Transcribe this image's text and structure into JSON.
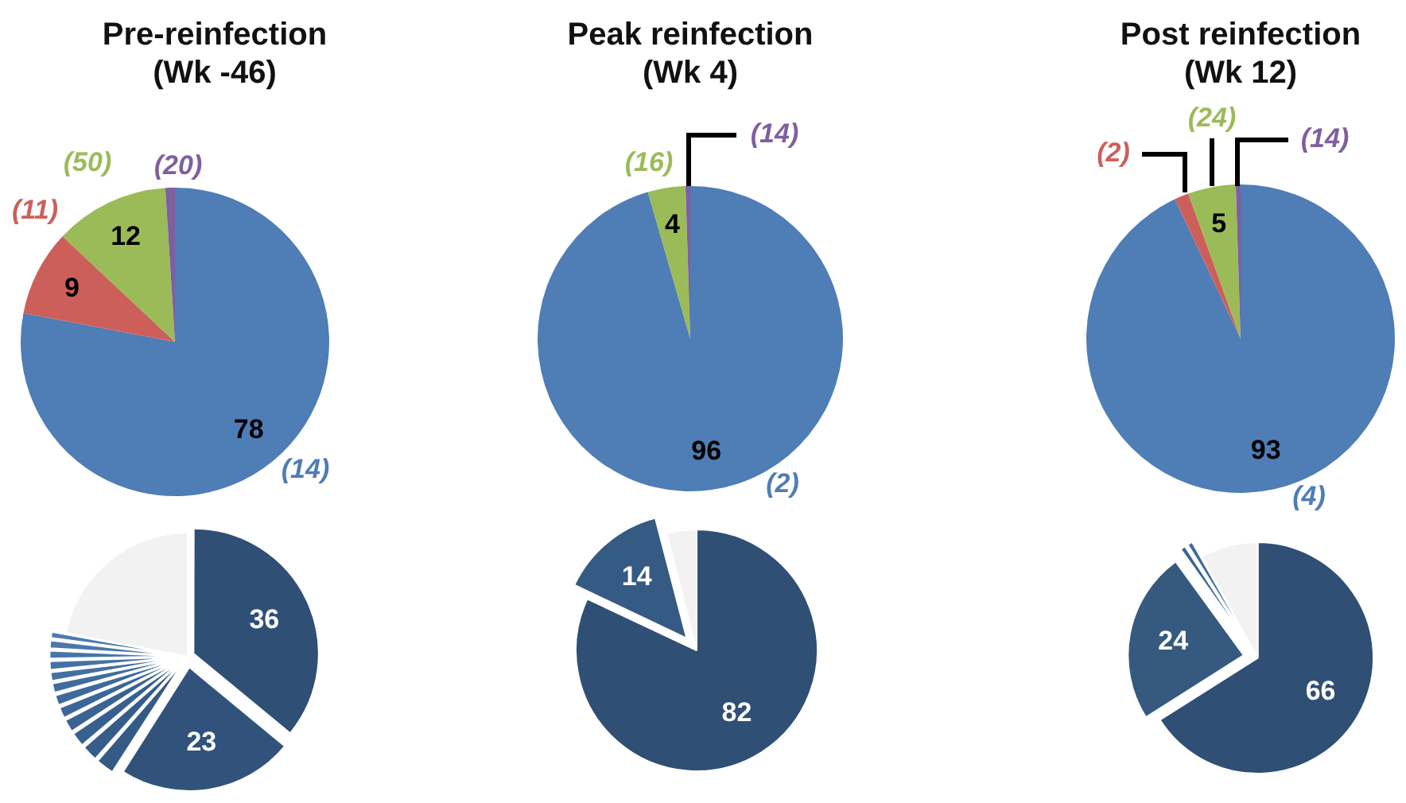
{
  "chart_data": [
    {
      "type": "pie",
      "title": "Pre-reinfection (Wk -46)",
      "categories": [
        null,
        null,
        null,
        null
      ],
      "values": [
        78,
        9,
        12,
        1
      ],
      "colors": [
        "#4f7db5",
        "#cd5f5a",
        "#9bbb59",
        "#7f5fa0"
      ],
      "value_labels": [
        "78",
        "9",
        "12",
        null
      ],
      "annotations": [
        "(14)",
        "(11)",
        "(50)",
        "(20)"
      ]
    },
    {
      "type": "pie",
      "title": "Peak reinfection (Wk 4)",
      "categories": [
        null,
        null,
        null
      ],
      "values": [
        96,
        4,
        0.5
      ],
      "colors": [
        "#4f7db5",
        "#9bbb59",
        "#7f5fa0"
      ],
      "value_labels": [
        "96",
        "4",
        null
      ],
      "annotations": [
        "(2)",
        "(16)",
        "(14)"
      ]
    },
    {
      "type": "pie",
      "title": "Post reinfection (Wk 12)",
      "categories": [
        null,
        null,
        null,
        null
      ],
      "values": [
        93,
        1.5,
        5,
        0.5
      ],
      "colors": [
        "#4f7db5",
        "#cd5f5a",
        "#9bbb59",
        "#7f5fa0"
      ],
      "value_labels": [
        "93",
        null,
        "5",
        null
      ],
      "annotations": [
        "(4)",
        "(2)",
        "(24)",
        "(14)"
      ]
    },
    {
      "type": "pie",
      "categories": [
        null,
        null,
        null,
        null,
        null,
        null,
        null,
        null,
        null,
        null,
        null,
        null,
        null,
        null,
        null
      ],
      "values": [
        36,
        23,
        2.5,
        2.2,
        2,
        1.8,
        1.6,
        1.5,
        1.4,
        1.3,
        1.3,
        1.2,
        1.2,
        1.0,
        22
      ],
      "colors": [
        "#2f4f75",
        "#31537b",
        "#345a86",
        "#365d8a",
        "#38608e",
        "#3a6392",
        "#3c6696",
        "#3e699a",
        "#406c9e",
        "#436fa2",
        "#4572a6",
        "#4775aa",
        "#4978ae",
        "#4b7bb2",
        "#f2f2f2"
      ],
      "value_labels": [
        "36",
        "23",
        null,
        null,
        null,
        null,
        null,
        null,
        null,
        null,
        null,
        null,
        null,
        null,
        null
      ]
    },
    {
      "type": "pie",
      "categories": [
        null,
        null,
        null
      ],
      "values": [
        82,
        14,
        4
      ],
      "colors": [
        "#2f4f75",
        "#355a84",
        "#f2f2f2"
      ],
      "value_labels": [
        "82",
        "14",
        null
      ]
    },
    {
      "type": "pie",
      "categories": [
        null,
        null,
        null,
        null,
        null
      ],
      "values": [
        66,
        24,
        1,
        1,
        8
      ],
      "colors": [
        "#2f4f75",
        "#36597f",
        "#3a6595",
        "#3d6a9c",
        "#f2f2f2"
      ],
      "value_labels": [
        "66",
        "24",
        null,
        null,
        null
      ]
    }
  ]
}
